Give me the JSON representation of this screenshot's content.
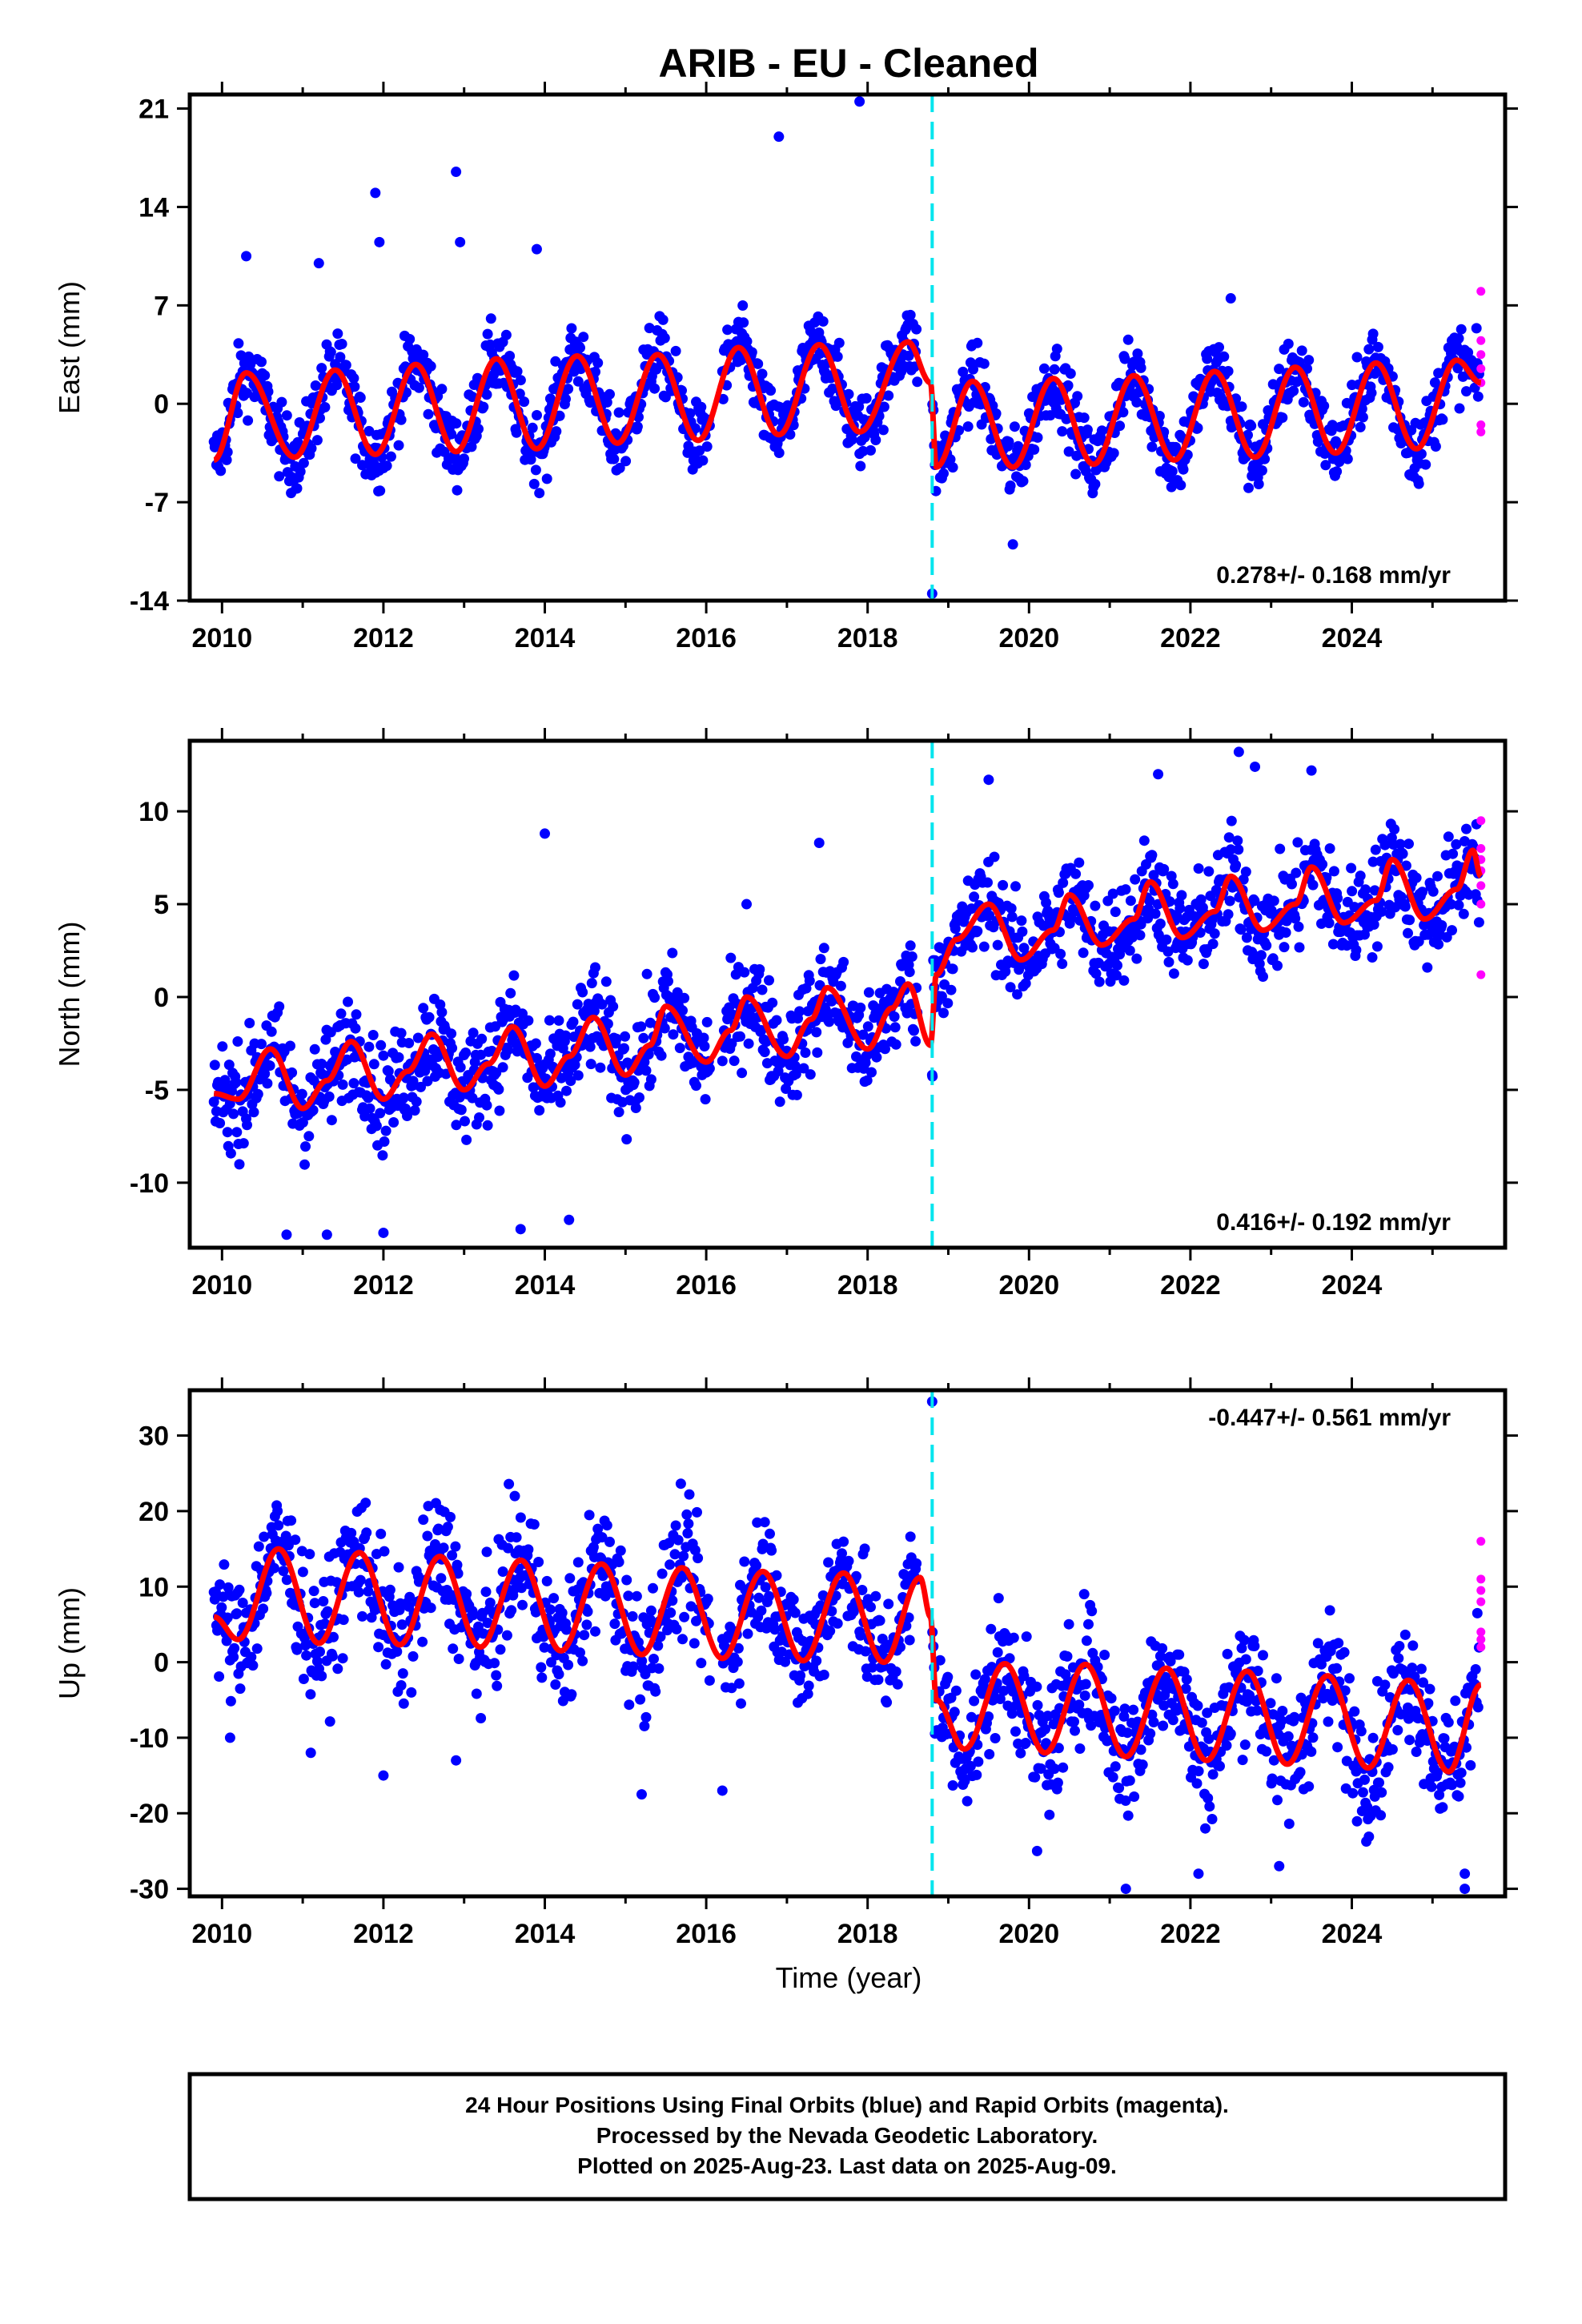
{
  "title": "ARIB  - EU - Cleaned",
  "xlabel": "Time (year)",
  "caption": [
    "24 Hour Positions Using Final Orbits (blue) and Rapid Orbits (magenta).",
    "Processed by the Nevada Geodetic Laboratory.",
    "Plotted on 2025-Aug-23. Last data on 2025-Aug-09."
  ],
  "colors": {
    "final_orbits": "#0000ff",
    "rapid_orbits": "#ff00ff",
    "model_fit": "#ff0000",
    "equipment_change": "#00e5ee"
  },
  "chart_data": [
    {
      "type": "scatter",
      "ylabel": "East (mm)",
      "xlim": [
        2009.6,
        2025.9
      ],
      "ylim": [
        -14,
        22
      ],
      "xticks": [
        2010,
        2012,
        2014,
        2016,
        2018,
        2020,
        2022,
        2024
      ],
      "yticks": [
        -14,
        -7,
        0,
        7,
        14,
        21
      ],
      "rate_text": "0.278+/- 0.168 mm/yr",
      "rate_position": "bottom-right",
      "step_epoch": 2018.8,
      "series": [
        {
          "role": "model",
          "x": [
            2009.9,
            2010.3,
            2010.9,
            2011.4,
            2011.9,
            2012.4,
            2012.9,
            2013.4,
            2013.9,
            2014.4,
            2014.9,
            2015.4,
            2015.9,
            2016.4,
            2016.9,
            2017.4,
            2017.9,
            2018.5,
            2018.78,
            2018.85,
            2019.3,
            2019.8,
            2020.3,
            2020.8,
            2021.3,
            2021.8,
            2022.3,
            2022.8,
            2023.3,
            2023.8,
            2024.3,
            2024.8,
            2025.3,
            2025.6
          ],
          "y": [
            -4,
            2.2,
            -3.8,
            2.4,
            -3.6,
            2.8,
            -3.4,
            3.2,
            -3.2,
            3.4,
            -2.8,
            3.5,
            -2.6,
            4,
            -2.2,
            4.2,
            -2,
            4.4,
            1.5,
            -4.5,
            1.6,
            -4.5,
            1.8,
            -4.3,
            2,
            -4,
            2.3,
            -3.8,
            2.6,
            -3.5,
            2.9,
            -3.2,
            3.1,
            1.5
          ]
        },
        {
          "role": "outliers",
          "x": [
            2010.3,
            2011.2,
            2011.9,
            2011.95,
            2012.9,
            2012.95,
            2013.9,
            2016.9,
            2017.9,
            2018.8,
            2019.8,
            2022.5
          ],
          "y": [
            10.5,
            10,
            15,
            11.5,
            16.5,
            11.5,
            11,
            19,
            21.5,
            -13.5,
            -10,
            7.5
          ]
        },
        {
          "role": "rapid",
          "x": [
            2025.6,
            2025.6,
            2025.6,
            2025.6,
            2025.6,
            2025.6,
            2025.6
          ],
          "y": [
            8,
            4.5,
            3.5,
            2.5,
            1.5,
            -1.5,
            -2
          ]
        }
      ]
    },
    {
      "type": "scatter",
      "ylabel": "North (mm)",
      "xlim": [
        2009.6,
        2025.9
      ],
      "ylim": [
        -13.5,
        13.8
      ],
      "xticks": [
        2010,
        2012,
        2014,
        2016,
        2018,
        2020,
        2022,
        2024
      ],
      "yticks": [
        -10,
        -5,
        0,
        5,
        10
      ],
      "rate_text": "0.416+/- 0.192 mm/yr",
      "rate_position": "bottom-right",
      "step_epoch": 2018.8,
      "series": [
        {
          "role": "model",
          "x": [
            2009.9,
            2010.2,
            2010.6,
            2011,
            2011.3,
            2011.6,
            2012,
            2012.3,
            2012.6,
            2013,
            2013.3,
            2013.6,
            2014,
            2014.3,
            2014.6,
            2015,
            2015.3,
            2015.5,
            2016,
            2016.3,
            2016.5,
            2017,
            2017.3,
            2017.5,
            2018,
            2018.3,
            2018.5,
            2018.78,
            2018.85,
            2019.1,
            2019.5,
            2019.9,
            2020.3,
            2020.5,
            2020.9,
            2021.3,
            2021.5,
            2021.9,
            2022.3,
            2022.5,
            2022.9,
            2023.3,
            2023.5,
            2023.9,
            2024.3,
            2024.5,
            2024.9,
            2025.3,
            2025.5,
            2025.6
          ],
          "y": [
            -5.2,
            -5.5,
            -2.8,
            -6,
            -4.5,
            -2.4,
            -5.5,
            -4,
            -2,
            -5,
            -3.6,
            -1.6,
            -4.8,
            -3.2,
            -1.1,
            -4.2,
            -2.6,
            -0.5,
            -3.5,
            -1.8,
            0,
            -3.2,
            -1.2,
            0.5,
            -2.8,
            -0.6,
            0.7,
            -2.6,
            1.2,
            3.1,
            5,
            2,
            3.6,
            5.5,
            2.8,
            4.2,
            6.2,
            3.2,
            4.6,
            6.5,
            3.6,
            5,
            7,
            4,
            5.2,
            7.4,
            4.2,
            5.8,
            7.9,
            6.5
          ]
        },
        {
          "role": "outliers",
          "x": [
            2010.8,
            2011.3,
            2012,
            2013.7,
            2014,
            2014.3,
            2016.5,
            2017.4,
            2018.8,
            2019.5,
            2021.6,
            2022.6,
            2022.8,
            2023.5
          ],
          "y": [
            -12.8,
            -12.8,
            -12.7,
            -12.5,
            8.8,
            -12,
            5,
            8.3,
            -4.2,
            11.7,
            12,
            13.2,
            12.4,
            12.2
          ]
        },
        {
          "role": "rapid",
          "x": [
            2025.6,
            2025.6,
            2025.6,
            2025.6,
            2025.6,
            2025.6,
            2025.6
          ],
          "y": [
            9.5,
            8,
            7.4,
            6.8,
            6,
            5,
            1.2
          ]
        }
      ]
    },
    {
      "type": "scatter",
      "ylabel": "Up (mm)",
      "xlabel": "Time (year)",
      "xlim": [
        2009.6,
        2025.9
      ],
      "ylim": [
        -31,
        36
      ],
      "xticks": [
        2010,
        2012,
        2014,
        2016,
        2018,
        2020,
        2022,
        2024
      ],
      "yticks": [
        -30,
        -20,
        -10,
        0,
        10,
        20,
        30
      ],
      "rate_text": "-0.447+/- 0.561 mm/yr",
      "rate_position": "top-right",
      "step_epoch": 2018.8,
      "series": [
        {
          "role": "model",
          "x": [
            2009.9,
            2010.2,
            2010.7,
            2011.2,
            2011.7,
            2012.2,
            2012.7,
            2013.2,
            2013.7,
            2014.2,
            2014.7,
            2015.2,
            2015.7,
            2016.2,
            2016.7,
            2017.2,
            2017.7,
            2018.2,
            2018.65,
            2018.78,
            2018.85,
            2019.2,
            2019.7,
            2020.2,
            2020.7,
            2021.2,
            2021.7,
            2022.2,
            2022.7,
            2023.2,
            2023.7,
            2024.2,
            2024.7,
            2025.2,
            2025.6
          ],
          "y": [
            6,
            3,
            15,
            2.5,
            14.5,
            2.3,
            14,
            2,
            13.5,
            1.5,
            13,
            1,
            12.5,
            0.5,
            12,
            0.2,
            11.8,
            0,
            11.2,
            6,
            -5,
            -11.5,
            -0.2,
            -12,
            -0.3,
            -12.5,
            -0.8,
            -13,
            -1.2,
            -13.5,
            -1.8,
            -14,
            -2.4,
            -14.5,
            -3
          ]
        },
        {
          "role": "outliers",
          "x": [
            2010.1,
            2011.1,
            2012,
            2012.9,
            2015.2,
            2016.2,
            2018.8,
            2020.1,
            2021.2,
            2022.1,
            2023.1,
            2025.4,
            2025.4
          ],
          "y": [
            -10,
            -12,
            -15,
            -13,
            -17.5,
            -17,
            34.5,
            -25,
            -30,
            -28,
            -27,
            -30,
            -28
          ]
        },
        {
          "role": "rapid",
          "x": [
            2025.6,
            2025.6,
            2025.6,
            2025.6,
            2025.6,
            2025.6,
            2025.6
          ],
          "y": [
            16,
            11,
            9.5,
            8,
            4,
            3,
            2
          ]
        }
      ]
    }
  ]
}
